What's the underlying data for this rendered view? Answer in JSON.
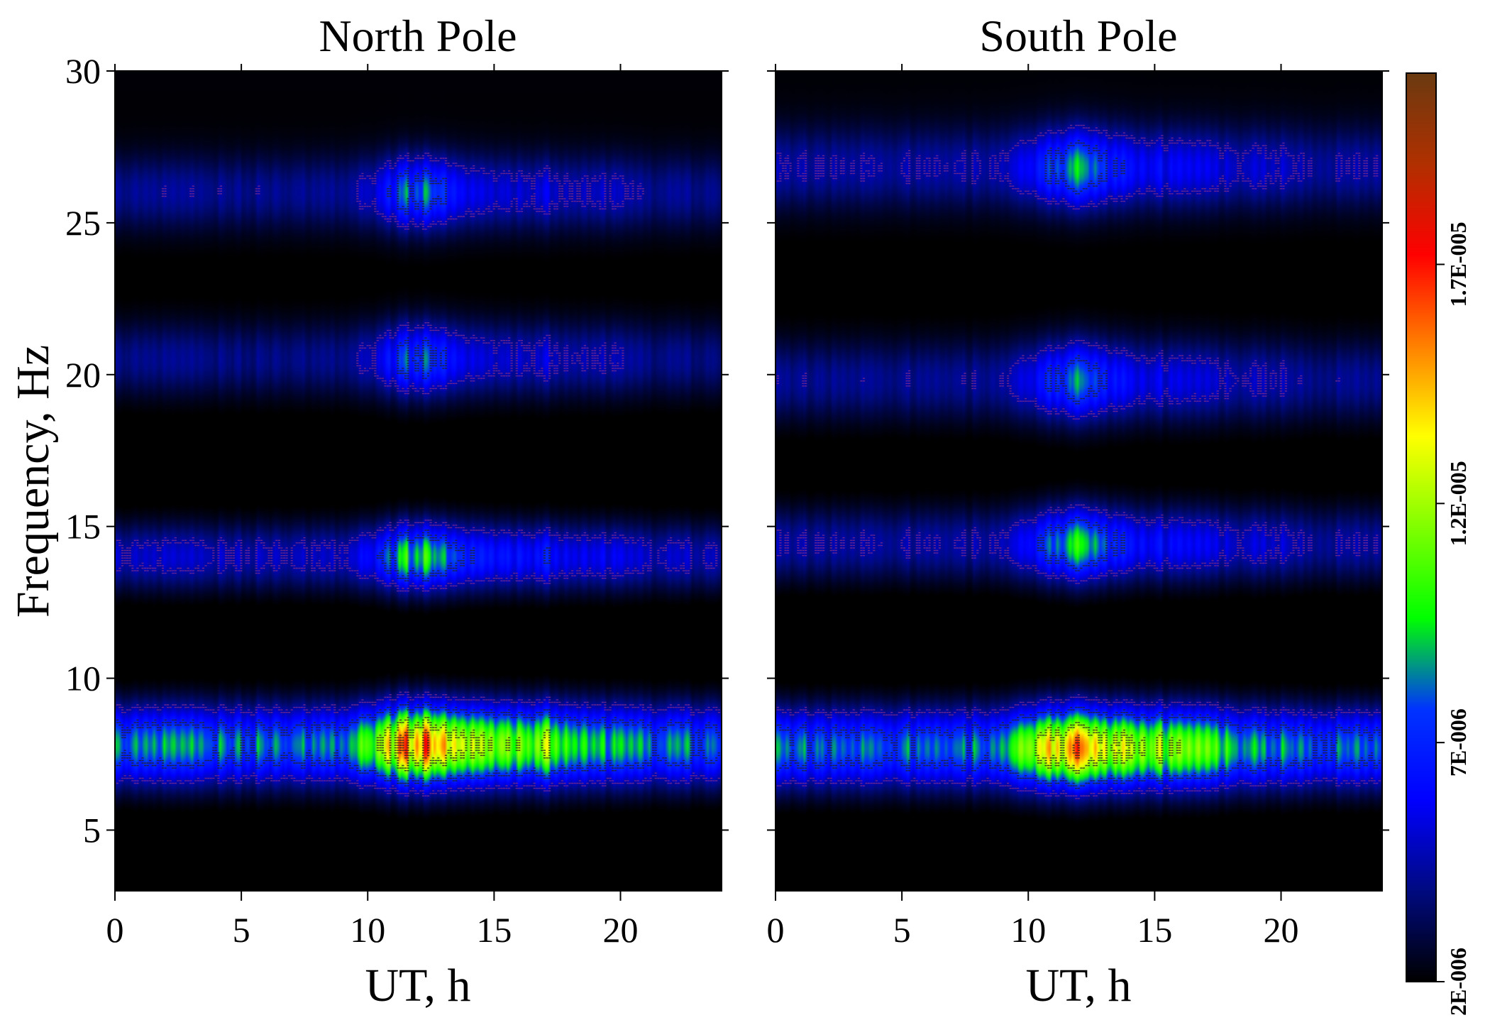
{
  "chart_data": [
    {
      "type": "heatmap",
      "title": "North Pole",
      "xlabel": "UT, h",
      "ylabel": "Frequency, Hz",
      "xlim": [
        0,
        24
      ],
      "ylim": [
        3,
        30
      ],
      "x_ticks": [
        0,
        5,
        10,
        15,
        20
      ],
      "y_ticks": [
        5,
        10,
        15,
        20,
        25,
        30
      ],
      "modes": [
        {
          "freq": 7.8,
          "width": 1.3,
          "base": 1.05e-05,
          "active_peak": 1.7e-05,
          "contours": [
            7e-06,
            1.2e-05,
            1.7e-05
          ]
        },
        {
          "freq": 14.0,
          "width": 1.1,
          "base": 5e-06,
          "active_peak": 1.05e-05,
          "contours": [
            4.5e-06,
            7e-06
          ]
        },
        {
          "freq": 20.5,
          "width": 1.2,
          "base": 3.4e-06,
          "active_peak": 8e-06,
          "contours": [
            4.5e-06
          ]
        },
        {
          "freq": 26.0,
          "width": 1.2,
          "base": 3.4e-06,
          "active_peak": 8.5e-06,
          "contours": [
            4.5e-06
          ]
        }
      ],
      "activity_hours": [
        9.5,
        18
      ],
      "activity_peaks_h": [
        11.5,
        12.7,
        19.5
      ]
    },
    {
      "type": "heatmap",
      "title": "South Pole",
      "xlabel": "UT, h",
      "ylabel": "",
      "xlim": [
        0,
        24
      ],
      "ylim": [
        3,
        30
      ],
      "x_ticks": [
        0,
        5,
        10,
        15,
        20
      ],
      "y_ticks": [
        5,
        10,
        15,
        20,
        25,
        30
      ],
      "modes": [
        {
          "freq": 7.7,
          "width": 1.3,
          "base": 1.05e-05,
          "active_peak": 1.6e-05,
          "contours": [
            7e-06,
            1.2e-05,
            1.6e-05
          ]
        },
        {
          "freq": 14.4,
          "width": 1.2,
          "base": 4.5e-06,
          "active_peak": 1.05e-05,
          "contours": [
            4.5e-06
          ]
        },
        {
          "freq": 19.8,
          "width": 1.3,
          "base": 3.8e-06,
          "active_peak": 8.5e-06,
          "contours": [
            4.5e-06
          ]
        },
        {
          "freq": 26.8,
          "width": 1.3,
          "base": 4e-06,
          "active_peak": 9e-06,
          "contours": [
            4.5e-06
          ]
        }
      ],
      "activity_hours": [
        9.5,
        17.8
      ],
      "activity_peaks_h": [
        11.5,
        12.7,
        19.5
      ]
    }
  ],
  "colorbar": {
    "min": 2e-06,
    "max": 2.1e-05,
    "tick_values": [
      2e-06,
      7e-06,
      1.2e-05,
      1.7e-05
    ],
    "tick_labels": [
      "2E-006",
      "7E-006",
      "1.2E-005",
      "1.7E-005"
    ],
    "colors": [
      "#000000",
      "#000a80",
      "#0000ff",
      "#0033ff",
      "#00ff00",
      "#80ff00",
      "#ffff00",
      "#ff8000",
      "#ff0000",
      "#b03000",
      "#6a3a10"
    ]
  }
}
